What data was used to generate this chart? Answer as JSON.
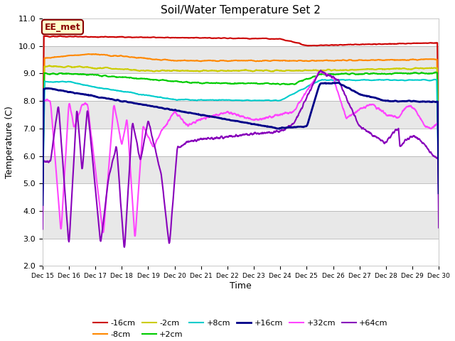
{
  "title": "Soil/Water Temperature Set 2",
  "xlabel": "Time",
  "ylabel": "Temperature (C)",
  "ylim": [
    2.0,
    11.0
  ],
  "xlim": [
    0,
    15
  ],
  "yticks": [
    2.0,
    3.0,
    4.0,
    5.0,
    6.0,
    7.0,
    8.0,
    9.0,
    10.0,
    11.0
  ],
  "xtick_labels": [
    "Dec 15",
    "Dec 16",
    "Dec 17",
    "Dec 18",
    "Dec 19",
    "Dec 20",
    "Dec 21",
    "Dec 22",
    "Dec 23",
    "Dec 24",
    "Dec 25",
    "Dec 26",
    "Dec 27",
    "Dec 28",
    "Dec 29",
    "Dec 30"
  ],
  "annotation_text": "EE_met",
  "annotation_bg": "#ffffcc",
  "annotation_border": "#8b0000",
  "series": {
    "m16cm": {
      "color": "#cc0000",
      "label": "-16cm",
      "lw": 1.5
    },
    "m8cm": {
      "color": "#ff8800",
      "label": "-8cm",
      "lw": 1.5
    },
    "m2cm": {
      "color": "#cccc00",
      "label": "-2cm",
      "lw": 1.5
    },
    "p2cm": {
      "color": "#00cc00",
      "label": "+2cm",
      "lw": 1.5
    },
    "p8cm": {
      "color": "#00cccc",
      "label": "+8cm",
      "lw": 1.5
    },
    "p16cm": {
      "color": "#000088",
      "label": "+16cm",
      "lw": 2.0
    },
    "p32cm": {
      "color": "#ff44ff",
      "label": "+32cm",
      "lw": 1.5
    },
    "p64cm": {
      "color": "#8800bb",
      "label": "+64cm",
      "lw": 1.5
    }
  },
  "band_colors": [
    "#ffffff",
    "#e8e8e8"
  ]
}
